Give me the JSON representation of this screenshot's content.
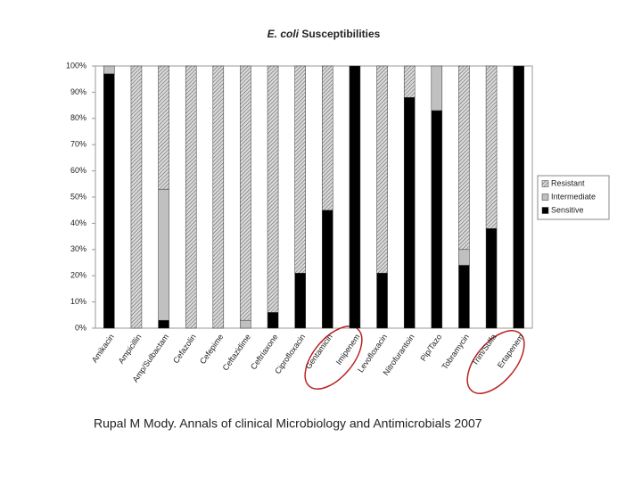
{
  "chart_data": {
    "type": "stacked_bar",
    "title_italic": "E. coli",
    "title": "Susceptibilities",
    "categories": [
      "Amikacin",
      "Ampicillin",
      "Amp/Sulbactam",
      "Cefazolin",
      "Cefepime",
      "Ceftazidime",
      "Ceftriaxone",
      "Ciprofloxacin",
      "Gentamicin",
      "Imipenem",
      "Levofloxacin",
      "Nitrofurantoin",
      "Pip/Tazo",
      "Tobramycin",
      "Trim/Sulfa",
      "Ertapenem"
    ],
    "series": [
      {
        "name": "Sensitive",
        "color": "#000000",
        "values": [
          97,
          0,
          3,
          0,
          0,
          0,
          6,
          21,
          45,
          100,
          21,
          88,
          83,
          24,
          38,
          100
        ]
      },
      {
        "name": "Intermediate",
        "color": "#c0c0c0",
        "values": [
          3,
          0,
          50,
          0,
          0,
          3,
          0,
          0,
          0,
          0,
          0,
          0,
          17,
          6,
          0,
          0
        ]
      },
      {
        "name": "Resistant",
        "color": "#d9d9d9",
        "pattern": "hatch",
        "values": [
          0,
          100,
          47,
          100,
          100,
          97,
          94,
          79,
          55,
          0,
          79,
          12,
          0,
          70,
          62,
          0
        ]
      }
    ],
    "ylim": [
      0,
      100
    ],
    "yticks": [
      {
        "value": 0,
        "label": "0%"
      },
      {
        "value": 10,
        "label": "10%"
      },
      {
        "value": 20,
        "label": "20%"
      },
      {
        "value": 30,
        "label": "30%"
      },
      {
        "value": 40,
        "label": "40%"
      },
      {
        "value": 50,
        "label": "50%"
      },
      {
        "value": 60,
        "label": "60%"
      },
      {
        "value": 70,
        "label": "70%"
      },
      {
        "value": 80,
        "label": "80%"
      },
      {
        "value": 90,
        "label": "90%"
      },
      {
        "value": 100,
        "label": "100%"
      }
    ],
    "legend": "right",
    "citation": "Rupal M Mody. Annals of clinical Microbiology and Antimicrobials 2007"
  }
}
